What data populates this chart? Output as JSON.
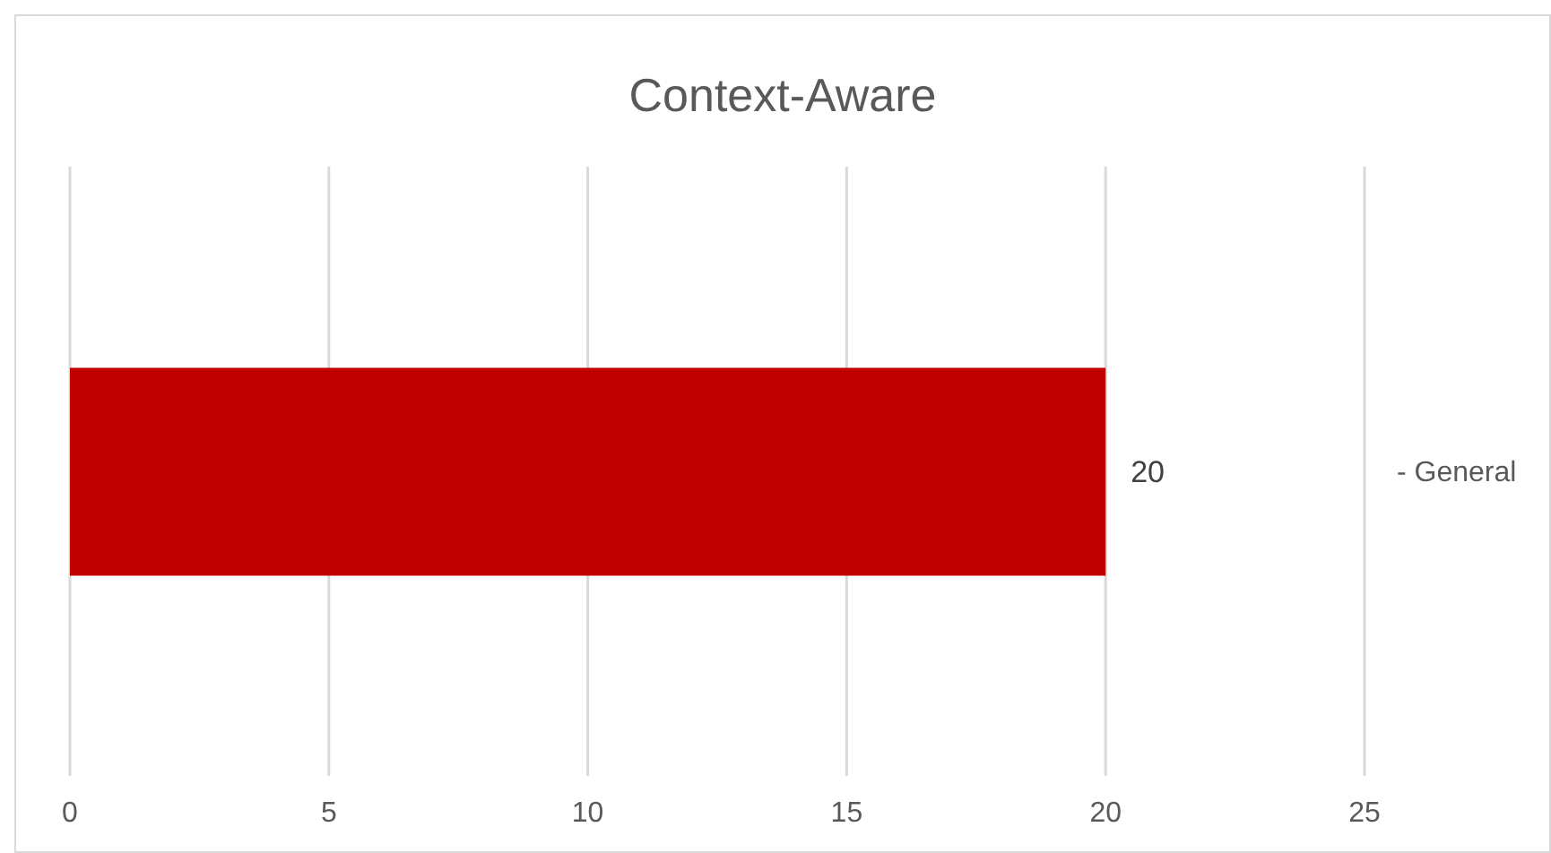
{
  "chart_data": {
    "type": "bar",
    "orientation": "horizontal",
    "title": "Context-Aware",
    "categories": [
      "- General"
    ],
    "values": [
      20
    ],
    "color": "#c00000",
    "xlim": [
      0,
      25
    ],
    "xticks": [
      0,
      5,
      10,
      15,
      20,
      25
    ],
    "grid": "x",
    "data_labels": true
  }
}
